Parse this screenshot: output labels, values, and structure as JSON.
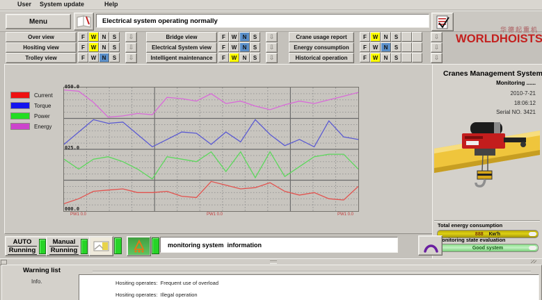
{
  "menu_bar": {
    "items": [
      "User",
      "System update",
      "Help"
    ]
  },
  "toolbar": {
    "menu_label": "Menu",
    "status_text": "Electrical system operating normally"
  },
  "nav_grid": {
    "indicator_labels": [
      "F",
      "W",
      "N",
      "S"
    ],
    "arrow_glyph": "⇩",
    "columns": [
      {
        "buttons": [
          {
            "label": "Over view",
            "active": "W"
          },
          {
            "label": "Hositing view",
            "active": "W"
          },
          {
            "label": "Trolley view",
            "active": "N"
          }
        ]
      },
      {
        "buttons": [
          {
            "label": "Bridge view",
            "active": "N"
          },
          {
            "label": "Electrical System view",
            "active": "N"
          },
          {
            "label": "Intelligent maintenance",
            "active": "W"
          }
        ]
      },
      {
        "buttons": [
          {
            "label": "Crane usage report",
            "active": "W"
          },
          {
            "label": "Energy consumption",
            "active": "N"
          },
          {
            "label": "Historical operation",
            "active": "W"
          }
        ]
      }
    ]
  },
  "logo": {
    "brand": "WORLDHOISTS",
    "cjk": "华德起重机",
    "color": "#c3211f"
  },
  "right_panel": {
    "title": "Cranes Management System",
    "monitoring_label": "Monitoring ......",
    "date": "2010-7-21",
    "time": "18:06:12",
    "serial": "Serial NO. 3421",
    "energy_section_label": "Total energy consumption",
    "energy_value": "888",
    "energy_unit": "Kw'h",
    "evaluation_label": "Monitoring state evaluation",
    "evaluation_value": "Good system"
  },
  "chart_data": {
    "type": "line",
    "title": "",
    "xlabel": "",
    "ylabel": "",
    "ylim": [
      0,
      50
    ],
    "yticks": [
      "050.0",
      "025.0",
      "000.0"
    ],
    "footer_labels": [
      "PW1 0.0",
      "PW1 0.0",
      "PW1 0.0"
    ],
    "grid": true,
    "legend_position": "left",
    "series": [
      {
        "name": "Current",
        "color": "#e2524e",
        "swatch": "#ee1111",
        "values": [
          3,
          5,
          8,
          8.5,
          9,
          7.5,
          7.5,
          8,
          6,
          5.5,
          12,
          10.5,
          9,
          9.5,
          11.5,
          8,
          6.5,
          7.5,
          5,
          4.5,
          10
        ]
      },
      {
        "name": "Torque",
        "color": "#5a5ad2",
        "swatch": "#1414ee",
        "values": [
          27,
          32,
          37,
          35.5,
          36,
          31,
          26,
          29,
          32,
          31.5,
          27,
          32,
          28,
          37,
          31,
          26.5,
          29,
          26,
          36.5,
          30,
          29
        ]
      },
      {
        "name": "Power",
        "color": "#5cd85c",
        "swatch": "#22dd22",
        "values": [
          21,
          17,
          21,
          22,
          20,
          17,
          13,
          22,
          21,
          20,
          24,
          16,
          24,
          13.5,
          24,
          14,
          18,
          22,
          23,
          23,
          17
        ]
      },
      {
        "name": "Energy",
        "color": "#d96ad9",
        "swatch": "#cc44cc",
        "values": [
          49,
          48.5,
          44,
          38,
          38.5,
          39.5,
          39,
          46,
          45.5,
          44.5,
          47.5,
          43.5,
          44.5,
          42.5,
          41,
          43,
          44.5,
          43.5,
          45,
          46.5,
          48
        ]
      }
    ]
  },
  "bottom_bar": {
    "auto_line1": "AUTO",
    "auto_line2": "Running",
    "manual_line1": "Manual",
    "manual_line2": "Running",
    "info_text": "monitoring system  information"
  },
  "warning_panel": {
    "title": "Warning list",
    "side_label": "Info.",
    "items": [
      "Hositing operates:  Frequent use of overload",
      "Hositing operates:  Illegal operation"
    ]
  }
}
